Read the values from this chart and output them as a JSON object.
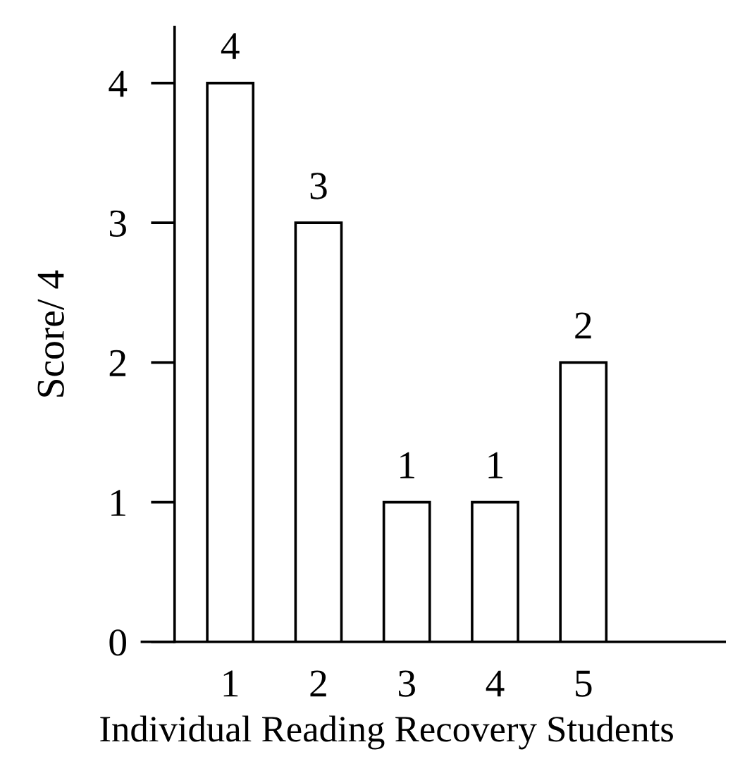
{
  "chart_data": {
    "type": "bar",
    "xlabel": "Individual Reading Recovery Students",
    "ylabel": "Score/ 4",
    "categories": [
      "1",
      "2",
      "3",
      "4",
      "5"
    ],
    "values": [
      4,
      3,
      1,
      1,
      2
    ],
    "color": "#ffffff",
    "ylim": [
      0,
      4.4
    ],
    "yticks": [
      0,
      1,
      2,
      3,
      4
    ],
    "data_labels": true,
    "grid": false,
    "legend": false
  }
}
